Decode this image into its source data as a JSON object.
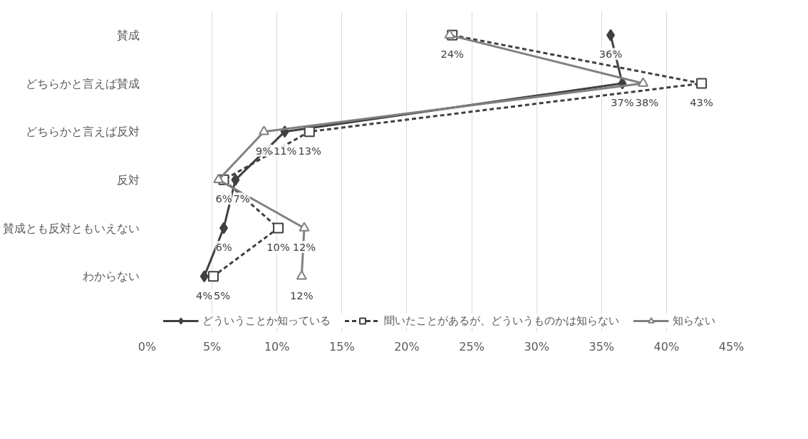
{
  "chart_data": {
    "type": "line",
    "orientation": "horizontal",
    "categories": [
      "賛成",
      "どちらかと言えば賛成",
      "どちらかと言えば反対",
      "反対",
      "賛成とも反対ともいえない",
      "わからない"
    ],
    "series": [
      {
        "name": "どういうことか知っている",
        "color": "#404040",
        "marker": "diamond",
        "line_style": "solid",
        "values": [
          35.7,
          36.6,
          10.6,
          6.8,
          5.9,
          4.4
        ],
        "value_labels": [
          "36%",
          "37%",
          "11%",
          "7%",
          "6%",
          "4%"
        ]
      },
      {
        "name": "聞いたことがあるが、どういうものかは知らない",
        "color": "#404040",
        "marker": "square",
        "line_style": "dashed",
        "values": [
          23.5,
          42.7,
          12.5,
          5.9,
          10.1,
          5.1
        ],
        "value_labels": [
          "24%",
          "43%",
          "13%",
          "6%",
          "10%",
          "5%"
        ]
      },
      {
        "name": "知らない",
        "color": "#808080",
        "marker": "triangle",
        "line_style": "solid",
        "values": [
          23.3,
          38.2,
          9.0,
          5.5,
          12.1,
          11.9
        ],
        "value_labels": [
          null,
          "38%",
          "9%",
          null,
          "12%",
          "12%"
        ]
      }
    ],
    "xlim": [
      0,
      45
    ],
    "xticks": [
      {
        "value": 0,
        "label": "0%"
      },
      {
        "value": 5,
        "label": "5%"
      },
      {
        "value": 10,
        "label": "10%"
      },
      {
        "value": 15,
        "label": "15%"
      },
      {
        "value": 20,
        "label": "20%"
      },
      {
        "value": 25,
        "label": "25%"
      },
      {
        "value": 30,
        "label": "30%"
      },
      {
        "value": 35,
        "label": "35%"
      },
      {
        "value": 40,
        "label": "40%"
      },
      {
        "value": 45,
        "label": "45%"
      }
    ],
    "grid": "x",
    "legend": "bottom"
  }
}
